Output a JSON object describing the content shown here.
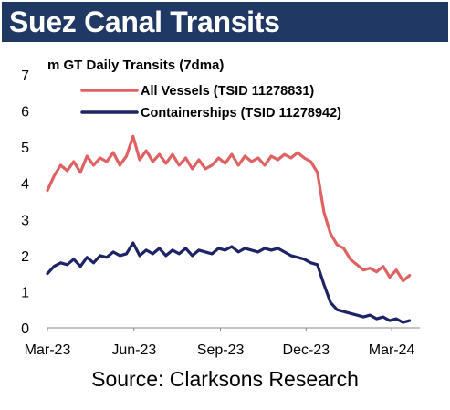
{
  "title": "Suez Canal Transits",
  "source": "Source: Clarksons Research",
  "chart_data": {
    "type": "line",
    "title": "",
    "ylabel": "m GT Daily Transits (7dma)",
    "xlabel": "",
    "ylim": [
      0,
      7
    ],
    "yticks": [
      "0",
      "1",
      "2",
      "3",
      "4",
      "5",
      "6",
      "7"
    ],
    "xlim": [
      "2023-03-01",
      "2024-03-31"
    ],
    "xticks": [
      {
        "label": "Mar-23",
        "date": "2023-03-01"
      },
      {
        "label": "Jun-23",
        "date": "2023-06-01"
      },
      {
        "label": "Sep-23",
        "date": "2023-09-01"
      },
      {
        "label": "Dec-23",
        "date": "2023-12-01"
      },
      {
        "label": "Mar-24",
        "date": "2024-03-01"
      }
    ],
    "grid": false,
    "legend": "top-left",
    "series": [
      {
        "name": "All Vessels (TSID 11278831)",
        "color": "#e06161",
        "x": [
          "2023-03-01",
          "2023-03-08",
          "2023-03-15",
          "2023-03-22",
          "2023-03-29",
          "2023-04-05",
          "2023-04-12",
          "2023-04-19",
          "2023-04-26",
          "2023-05-03",
          "2023-05-10",
          "2023-05-17",
          "2023-05-24",
          "2023-05-31",
          "2023-06-07",
          "2023-06-14",
          "2023-06-21",
          "2023-06-28",
          "2023-07-05",
          "2023-07-12",
          "2023-07-19",
          "2023-07-26",
          "2023-08-02",
          "2023-08-09",
          "2023-08-16",
          "2023-08-23",
          "2023-08-30",
          "2023-09-06",
          "2023-09-13",
          "2023-09-20",
          "2023-09-27",
          "2023-10-04",
          "2023-10-11",
          "2023-10-18",
          "2023-10-25",
          "2023-11-01",
          "2023-11-08",
          "2023-11-15",
          "2023-11-22",
          "2023-11-29",
          "2023-12-06",
          "2023-12-13",
          "2023-12-20",
          "2023-12-27",
          "2024-01-03",
          "2024-01-10",
          "2024-01-17",
          "2024-01-24",
          "2024-01-31",
          "2024-02-07",
          "2024-02-14",
          "2024-02-21",
          "2024-02-28",
          "2024-03-06",
          "2024-03-13",
          "2024-03-20"
        ],
        "values": [
          3.8,
          4.2,
          4.5,
          4.35,
          4.6,
          4.3,
          4.75,
          4.5,
          4.7,
          4.6,
          4.85,
          4.5,
          4.75,
          5.3,
          4.65,
          4.9,
          4.6,
          4.8,
          4.55,
          4.8,
          4.5,
          4.7,
          4.4,
          4.65,
          4.4,
          4.5,
          4.7,
          4.55,
          4.8,
          4.5,
          4.75,
          4.6,
          4.7,
          4.5,
          4.75,
          4.65,
          4.8,
          4.7,
          4.85,
          4.7,
          4.6,
          4.3,
          3.2,
          2.6,
          2.3,
          2.2,
          1.9,
          1.75,
          1.6,
          1.65,
          1.55,
          1.7,
          1.4,
          1.6,
          1.3,
          1.45
        ]
      },
      {
        "name": "Containerships (TSID 11278942)",
        "color": "#1c2466",
        "x": [
          "2023-03-01",
          "2023-03-08",
          "2023-03-15",
          "2023-03-22",
          "2023-03-29",
          "2023-04-05",
          "2023-04-12",
          "2023-04-19",
          "2023-04-26",
          "2023-05-03",
          "2023-05-10",
          "2023-05-17",
          "2023-05-24",
          "2023-05-31",
          "2023-06-07",
          "2023-06-14",
          "2023-06-21",
          "2023-06-28",
          "2023-07-05",
          "2023-07-12",
          "2023-07-19",
          "2023-07-26",
          "2023-08-02",
          "2023-08-09",
          "2023-08-16",
          "2023-08-23",
          "2023-08-30",
          "2023-09-06",
          "2023-09-13",
          "2023-09-20",
          "2023-09-27",
          "2023-10-04",
          "2023-10-11",
          "2023-10-18",
          "2023-10-25",
          "2023-11-01",
          "2023-11-08",
          "2023-11-15",
          "2023-11-22",
          "2023-11-29",
          "2023-12-06",
          "2023-12-13",
          "2023-12-20",
          "2023-12-27",
          "2024-01-03",
          "2024-01-10",
          "2024-01-17",
          "2024-01-24",
          "2024-01-31",
          "2024-02-07",
          "2024-02-14",
          "2024-02-21",
          "2024-02-28",
          "2024-03-06",
          "2024-03-13",
          "2024-03-20"
        ],
        "values": [
          1.5,
          1.7,
          1.8,
          1.75,
          1.9,
          1.7,
          1.95,
          1.8,
          2.0,
          1.95,
          2.1,
          2.0,
          2.05,
          2.35,
          2.0,
          2.15,
          2.05,
          2.2,
          2.0,
          2.15,
          2.05,
          2.2,
          2.0,
          2.15,
          2.1,
          2.05,
          2.2,
          2.15,
          2.25,
          2.1,
          2.2,
          2.15,
          2.1,
          2.2,
          2.15,
          2.2,
          2.1,
          2.0,
          1.95,
          1.9,
          1.8,
          1.75,
          1.2,
          0.7,
          0.5,
          0.45,
          0.4,
          0.35,
          0.3,
          0.35,
          0.25,
          0.3,
          0.2,
          0.25,
          0.15,
          0.2
        ]
      }
    ]
  }
}
